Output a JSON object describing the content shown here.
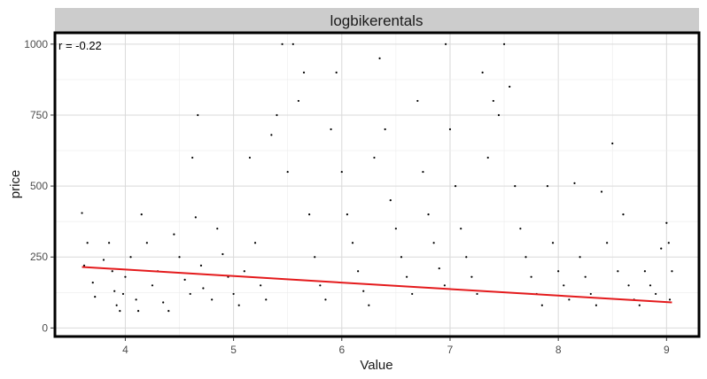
{
  "chart_data": {
    "type": "scatter",
    "title": "logbikerentals",
    "xlabel": "Value",
    "ylabel": "price",
    "xlim": [
      3.35,
      9.3
    ],
    "ylim": [
      -30,
      1040
    ],
    "x_ticks": [
      4,
      5,
      6,
      7,
      8,
      9
    ],
    "y_ticks": [
      0,
      250,
      500,
      750,
      1000
    ],
    "grid": true,
    "annotation": "r = -0.22",
    "trend_line": {
      "color": "#e41a1c",
      "points": [
        [
          3.6,
          215
        ],
        [
          9.05,
          90
        ]
      ]
    },
    "point_color": "#000000",
    "strip_color": "#cccccc",
    "series": [
      {
        "points": [
          [
            3.6,
            405
          ],
          [
            3.65,
            300
          ],
          [
            3.62,
            220
          ],
          [
            3.7,
            160
          ],
          [
            3.72,
            110
          ],
          [
            3.8,
            240
          ],
          [
            3.85,
            300
          ],
          [
            3.88,
            200
          ],
          [
            3.9,
            130
          ],
          [
            3.92,
            80
          ],
          [
            3.95,
            60
          ],
          [
            3.98,
            120
          ],
          [
            4.0,
            180
          ],
          [
            4.05,
            250
          ],
          [
            4.1,
            100
          ],
          [
            4.12,
            60
          ],
          [
            4.15,
            400
          ],
          [
            4.2,
            300
          ],
          [
            4.25,
            150
          ],
          [
            4.3,
            200
          ],
          [
            4.35,
            90
          ],
          [
            4.4,
            60
          ],
          [
            4.45,
            330
          ],
          [
            4.5,
            250
          ],
          [
            4.55,
            170
          ],
          [
            4.6,
            120
          ],
          [
            4.65,
            390
          ],
          [
            4.7,
            220
          ],
          [
            4.72,
            140
          ],
          [
            4.8,
            100
          ],
          [
            4.85,
            350
          ],
          [
            4.9,
            260
          ],
          [
            4.95,
            180
          ],
          [
            5.0,
            120
          ],
          [
            5.05,
            80
          ],
          [
            5.1,
            200
          ],
          [
            5.15,
            600
          ],
          [
            5.2,
            300
          ],
          [
            5.25,
            150
          ],
          [
            5.3,
            100
          ],
          [
            4.67,
            750
          ],
          [
            4.62,
            600
          ],
          [
            5.4,
            750
          ],
          [
            5.45,
            1000
          ],
          [
            5.55,
            1000
          ],
          [
            5.35,
            680
          ],
          [
            5.5,
            550
          ],
          [
            5.6,
            800
          ],
          [
            5.65,
            900
          ],
          [
            5.7,
            400
          ],
          [
            5.75,
            250
          ],
          [
            5.8,
            150
          ],
          [
            5.85,
            100
          ],
          [
            5.9,
            700
          ],
          [
            5.95,
            900
          ],
          [
            6.0,
            550
          ],
          [
            6.05,
            400
          ],
          [
            6.1,
            300
          ],
          [
            6.15,
            200
          ],
          [
            6.2,
            130
          ],
          [
            6.25,
            80
          ],
          [
            6.3,
            600
          ],
          [
            6.35,
            950
          ],
          [
            6.4,
            700
          ],
          [
            6.45,
            450
          ],
          [
            6.5,
            350
          ],
          [
            6.55,
            250
          ],
          [
            6.6,
            180
          ],
          [
            6.65,
            120
          ],
          [
            6.7,
            800
          ],
          [
            6.75,
            550
          ],
          [
            6.8,
            400
          ],
          [
            6.85,
            300
          ],
          [
            6.9,
            210
          ],
          [
            6.95,
            150
          ],
          [
            6.96,
            1000
          ],
          [
            7.0,
            700
          ],
          [
            7.05,
            500
          ],
          [
            7.1,
            350
          ],
          [
            7.15,
            250
          ],
          [
            7.2,
            180
          ],
          [
            7.25,
            120
          ],
          [
            7.3,
            900
          ],
          [
            7.35,
            600
          ],
          [
            7.4,
            800
          ],
          [
            7.45,
            750
          ],
          [
            7.5,
            1000
          ],
          [
            7.55,
            850
          ],
          [
            7.6,
            500
          ],
          [
            7.65,
            350
          ],
          [
            7.7,
            250
          ],
          [
            7.75,
            180
          ],
          [
            7.8,
            120
          ],
          [
            7.85,
            80
          ],
          [
            7.9,
            500
          ],
          [
            7.95,
            300
          ],
          [
            8.0,
            200
          ],
          [
            8.05,
            150
          ],
          [
            8.1,
            100
          ],
          [
            8.15,
            510
          ],
          [
            8.2,
            250
          ],
          [
            8.25,
            180
          ],
          [
            8.3,
            120
          ],
          [
            8.35,
            80
          ],
          [
            8.4,
            480
          ],
          [
            8.45,
            300
          ],
          [
            8.5,
            650
          ],
          [
            8.55,
            200
          ],
          [
            8.6,
            400
          ],
          [
            8.65,
            150
          ],
          [
            8.7,
            100
          ],
          [
            8.75,
            80
          ],
          [
            8.8,
            200
          ],
          [
            8.85,
            150
          ],
          [
            8.9,
            120
          ],
          [
            8.95,
            280
          ],
          [
            9.0,
            370
          ],
          [
            9.02,
            300
          ],
          [
            9.05,
            200
          ],
          [
            9.03,
            100
          ]
        ]
      }
    ]
  }
}
